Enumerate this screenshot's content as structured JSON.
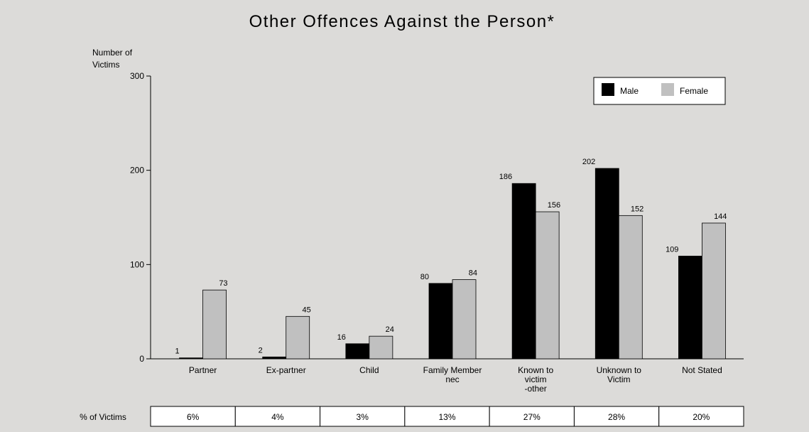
{
  "chart_data": {
    "type": "bar",
    "title": "Other Offences Against the Person*",
    "ylabel": "Number of Victims",
    "ylabel_lines": [
      "Number of",
      "Victims"
    ],
    "ylim": [
      0,
      300
    ],
    "yticks": [
      0,
      100,
      200,
      300
    ],
    "categories": [
      "Partner",
      "Ex-partner",
      "Child",
      "Family Member nec",
      "Known to victim -other",
      "Unknown to Victim",
      "Not Stated"
    ],
    "category_label_lines": [
      [
        "Partner"
      ],
      [
        "Ex-partner"
      ],
      [
        "Child"
      ],
      [
        "Family Member",
        "nec"
      ],
      [
        "Known to",
        "victim",
        "-other"
      ],
      [
        "Unknown to",
        "Victim"
      ],
      [
        "Not Stated"
      ]
    ],
    "series": [
      {
        "name": "Male",
        "color": "#000000",
        "values": [
          1,
          2,
          16,
          80,
          186,
          202,
          109
        ]
      },
      {
        "name": "Female",
        "color": "#c0c0c0",
        "values": [
          73,
          45,
          24,
          84,
          156,
          152,
          144
        ]
      }
    ],
    "legend": {
      "position": "top-right"
    },
    "grid": false,
    "percent_table": {
      "row_label": "% of Victims",
      "values": [
        "6%",
        "4%",
        "3%",
        "13%",
        "27%",
        "28%",
        "20%"
      ]
    }
  }
}
